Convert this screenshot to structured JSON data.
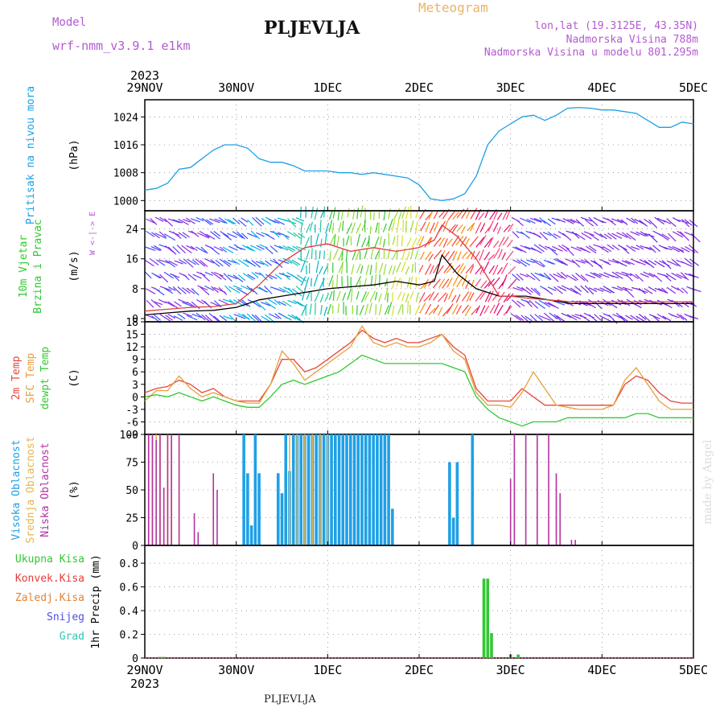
{
  "header": {
    "model_label": "Model",
    "model_name": "wrf-nmm_v3.9.1 e1km",
    "station": "PLJEVLJA",
    "title": "Meteogram",
    "coords": "lon,lat (19.3125E, 43.35N)",
    "altitude": "Nadmorska Visina 788m",
    "altitude_model": "Nadmorska Visina u modelu 801.295m"
  },
  "footer": {
    "station": "PLJEVLJA",
    "watermark": "made by Angel"
  },
  "time_axis": {
    "year": "2023",
    "ticks": [
      "29NOV",
      "30NOV",
      "1DEC",
      "2DEC",
      "3DEC",
      "4DEC",
      "5DEC"
    ],
    "hours": [
      0,
      24,
      48,
      72,
      96,
      120,
      144
    ]
  },
  "colors": {
    "pressure": "#1ea0e6",
    "wind_speed": "#000000",
    "wind_gust": "#e03c3c",
    "temp2m": "#e6463c",
    "sfc_temp": "#e6a03c",
    "dewpoint": "#32c832",
    "cloud_high": "#1ea0e6",
    "cloud_mid": "#e6b450",
    "cloud_low": "#b432a0",
    "precip_total": "#32c832",
    "precip_conv": "#e63c3c",
    "precip_frozen": "#e68232",
    "precip_snow": "#5050e6",
    "precip_hail": "#28c8b4"
  },
  "chart_data": [
    {
      "type": "line",
      "panel": "pressure",
      "ylabel_lines": [
        "Pritisak na nivou mora"
      ],
      "unit": "(hPa)",
      "ylim": [
        998,
        1028
      ],
      "yticks": [
        1000,
        1008,
        1016,
        1024
      ],
      "grid": true,
      "series": [
        {
          "x": [
            0,
            3,
            6,
            9,
            12,
            15,
            18,
            21,
            24,
            27,
            30,
            33,
            36,
            39,
            42,
            45,
            48,
            51,
            54,
            57,
            60,
            63,
            66,
            69,
            72,
            75,
            78,
            81,
            84,
            87,
            90,
            93,
            96,
            99,
            102,
            105,
            108,
            111,
            114,
            117,
            120,
            123,
            126,
            129,
            132,
            135,
            138,
            141,
            144
          ],
          "values": [
            1003,
            1003.5,
            1005,
            1009,
            1009.5,
            1012,
            1014.5,
            1016,
            1016,
            1015,
            1012,
            1011,
            1011,
            1010,
            1008.5,
            1008.5,
            1008.5,
            1008,
            1008,
            1007.5,
            1008,
            1007.5,
            1007,
            1006.5,
            1004.5,
            1000.5,
            1000,
            1000.5,
            1002,
            1007,
            1016,
            1020,
            1022,
            1024,
            1024.5,
            1023,
            1024.5,
            1026.5,
            1026.7,
            1026.5,
            1026,
            1026,
            1025.5,
            1025,
            1023,
            1021,
            1021,
            1022.5,
            1022
          ]
        }
      ]
    },
    {
      "type": "line",
      "panel": "wind",
      "ylabel_lines": [
        "10m Vjetar",
        "Brzina i Pravac"
      ],
      "unit": "(m/s)",
      "ylim": [
        0,
        28
      ],
      "yticks": [
        0,
        8,
        16,
        24
      ],
      "grid": true,
      "direction_legend": "W <-|-> E",
      "series": [
        {
          "name": "speed",
          "x": [
            0,
            6,
            12,
            18,
            24,
            30,
            36,
            42,
            48,
            54,
            60,
            66,
            72,
            76,
            78,
            82,
            87,
            93,
            96,
            100,
            106,
            112,
            118,
            124,
            130,
            136,
            144
          ],
          "values": [
            1,
            1.5,
            2,
            2.2,
            3,
            5,
            6,
            7,
            8,
            8.5,
            9,
            10,
            9,
            10,
            17,
            12,
            8,
            6,
            6,
            6,
            5,
            4,
            4,
            4,
            4,
            4,
            4
          ]
        },
        {
          "name": "gust",
          "x": [
            0,
            6,
            12,
            18,
            24,
            30,
            36,
            42,
            48,
            54,
            60,
            66,
            72,
            76,
            78,
            82,
            87,
            93,
            96,
            100,
            106,
            112,
            118,
            124,
            130,
            136,
            144
          ],
          "values": [
            2,
            2.5,
            3,
            3.2,
            4,
            9,
            15,
            19,
            20,
            18,
            19,
            18,
            19,
            21,
            25,
            22,
            16,
            6,
            6,
            5.5,
            5,
            4.5,
            4.5,
            4.5,
            4.5,
            4.5,
            4.5
          ]
        }
      ]
    },
    {
      "type": "line",
      "panel": "temperature",
      "ylabel_lines": [
        "2m Temp",
        "SFC Temp",
        "dewpt Temp"
      ],
      "unit": "(C)",
      "ylim": [
        -9,
        18
      ],
      "yticks": [
        -9,
        -6,
        -3,
        0,
        3,
        6,
        9,
        12,
        15,
        18
      ],
      "grid": true,
      "x": [
        0,
        3,
        6,
        9,
        12,
        15,
        18,
        21,
        24,
        27,
        30,
        33,
        36,
        39,
        42,
        45,
        48,
        51,
        54,
        57,
        60,
        63,
        66,
        69,
        72,
        75,
        78,
        81,
        84,
        87,
        90,
        93,
        96,
        99,
        102,
        105,
        108,
        111,
        114,
        117,
        120,
        123,
        126,
        129,
        132,
        135,
        138,
        141,
        144
      ],
      "series": [
        {
          "name": "2m Temp",
          "values": [
            1,
            2,
            2.5,
            4,
            3,
            1,
            2,
            0,
            -1,
            -1,
            -1,
            3,
            9,
            9,
            6,
            7,
            9,
            11,
            13,
            16,
            14,
            13,
            14,
            13,
            13,
            14,
            15,
            12,
            10,
            2,
            -1,
            -1,
            -1,
            2,
            0,
            -2,
            -2,
            -2,
            -2,
            -2,
            -2,
            -2,
            3,
            5,
            4,
            1,
            -1,
            -1.5,
            -1.5
          ]
        },
        {
          "name": "SFC Temp",
          "values": [
            -1,
            1.5,
            1.5,
            5,
            2,
            0,
            1,
            0,
            -1,
            -1.5,
            -1.5,
            3,
            11,
            8,
            4,
            6,
            8,
            10,
            12,
            17,
            13,
            12,
            13,
            12,
            12,
            13,
            15,
            11,
            9,
            1,
            -2,
            -2,
            -2.5,
            1,
            6,
            2,
            -2,
            -2.5,
            -3,
            -3,
            -3,
            -2,
            4,
            7,
            3,
            -1,
            -3,
            -3,
            -3
          ]
        },
        {
          "name": "dewpt Temp",
          "values": [
            0,
            0.5,
            0,
            1,
            0,
            -1,
            0,
            -1,
            -2,
            -2.5,
            -2.5,
            0,
            3,
            4,
            3,
            4,
            5,
            6,
            8,
            10,
            9,
            8,
            8,
            8,
            8,
            8,
            8,
            7,
            6,
            0,
            -3,
            -5,
            -6,
            -7,
            -6,
            -6,
            -6,
            -5,
            -5,
            -5,
            -5,
            -5,
            -5,
            -4,
            -4,
            -5,
            -5,
            -5,
            -5
          ]
        }
      ]
    },
    {
      "type": "bar",
      "panel": "clouds",
      "ylabel_lines": [
        "Visoka Oblacnost",
        "Srednja Oblacnost",
        "Niska Oblacnost"
      ],
      "unit": "(%)",
      "ylim": [
        0,
        100
      ],
      "yticks": [
        0,
        25,
        50,
        75,
        100
      ],
      "grid": true,
      "series": [
        {
          "name": "Visoka Oblacnost",
          "x": [
            26,
            27,
            28,
            29,
            30,
            35,
            36,
            37,
            38,
            39,
            40,
            41,
            42,
            43,
            44,
            45,
            46,
            47,
            48,
            49,
            50,
            51,
            52,
            53,
            54,
            55,
            56,
            57,
            58,
            59,
            60,
            61,
            62,
            63,
            64,
            65,
            66,
            67,
            68,
            69,
            70,
            71,
            72,
            73,
            74,
            80,
            81,
            82,
            83,
            86
          ],
          "values": [
            100,
            65,
            18,
            100,
            65,
            65,
            47,
            100,
            67,
            100,
            100,
            100,
            100,
            100,
            100,
            100,
            100,
            100,
            100,
            100,
            100,
            100,
            100,
            100,
            100,
            100,
            100,
            100,
            100,
            100,
            100,
            100,
            100,
            100,
            100,
            33,
            0,
            0,
            0,
            0,
            0,
            0,
            0,
            0,
            0,
            75,
            25,
            75,
            0,
            100
          ]
        },
        {
          "name": "Srednja Oblacnost",
          "x": [
            1,
            2,
            3,
            4,
            5,
            6,
            7,
            38,
            40,
            42,
            44,
            46,
            48
          ],
          "values": [
            100,
            100,
            100,
            100,
            52,
            100,
            100,
            100,
            100,
            100,
            100,
            100,
            100
          ]
        },
        {
          "name": "Niska Oblacnost",
          "x": [
            1,
            2,
            3,
            4,
            5,
            6,
            7,
            9,
            13,
            14,
            18,
            19,
            96,
            97,
            100,
            103,
            106,
            108,
            109,
            110,
            112,
            113
          ],
          "values": [
            100,
            100,
            95,
            100,
            52,
            100,
            100,
            100,
            29,
            12,
            65,
            50,
            60,
            100,
            100,
            100,
            100,
            65,
            47,
            0,
            5,
            5
          ]
        }
      ]
    },
    {
      "type": "bar",
      "panel": "precipitation",
      "ylabel_lines": [
        "Ukupna Kisa",
        "Konvek.Kisa",
        "Zaledj.Kisa",
        "Snijeg",
        "Grad"
      ],
      "unit": "1hr Precip (mm)",
      "ylim": [
        0,
        0.95
      ],
      "yticks": [
        0,
        0.2,
        0.4,
        0.6,
        0.8
      ],
      "grid": true,
      "series": [
        {
          "name": "Ukupna Kisa",
          "x": [
            4,
            5,
            89,
            90,
            91,
            96,
            98
          ],
          "values": [
            0.01,
            0.01,
            0.67,
            0.67,
            0.21,
            0.03,
            0.03
          ]
        }
      ]
    }
  ]
}
